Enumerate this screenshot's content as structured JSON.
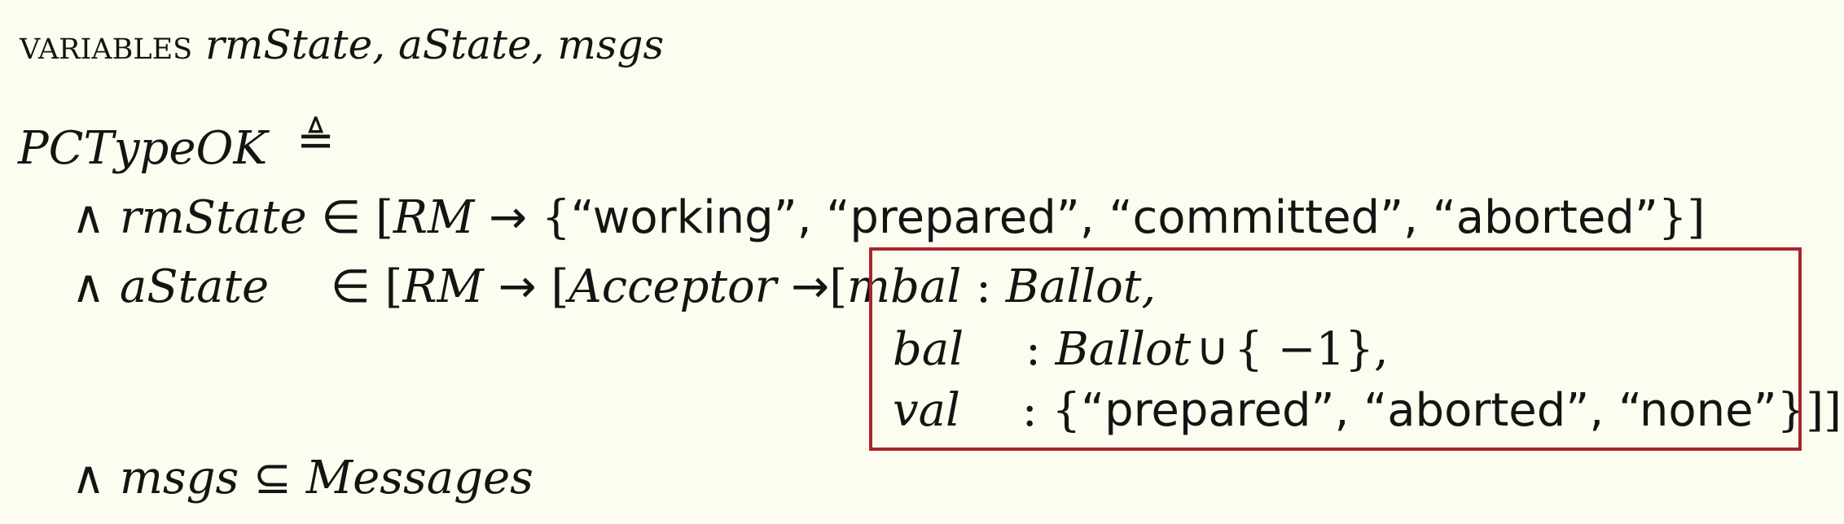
{
  "header": {
    "keyword": "variables",
    "vars": "rmState, aState, msgs"
  },
  "definition": {
    "name": "PCTypeOK",
    "op": "≜"
  },
  "rm_state_row": {
    "conj": "∧",
    "var": "rmState",
    "elem": "∈",
    "lbrack": "[",
    "domain": "RM",
    "arrow": "→",
    "lbrace": "{",
    "s1": "“working”",
    "s2": "“prepared”",
    "s3": "“committed”",
    "s4": "“aborted”",
    "sep": ",",
    "rbrace": "}",
    "rbrack": "]"
  },
  "a_state_row": {
    "conj": "∧",
    "var": "aState",
    "elem": "∈",
    "lbrack1": "[",
    "domain1": "RM",
    "arrow1": "→",
    "lbrack2": "[",
    "domain2": "Acceptor",
    "arrow2": "→",
    "lbrack3": "[",
    "field": "mbal",
    "colon": ":",
    "type": "Ballot,"
  },
  "bal_row": {
    "field": "bal",
    "colon": ":",
    "type": "Ballot",
    "union": "∪",
    "set": "{ −1},"
  },
  "val_row": {
    "field": "val",
    "colon": ":",
    "lbrace": "{",
    "v1": "“prepared”",
    "v2": "“aborted”",
    "v3": "“none”",
    "sep": ",",
    "closing": "}]]]"
  },
  "msgs_row": {
    "conj": "∧",
    "var": "msgs",
    "subset": "⊆",
    "set": "Messages"
  },
  "colors": {
    "background": "#fcfcf0",
    "text": "#141414",
    "highlight_border": "#a6262b"
  }
}
